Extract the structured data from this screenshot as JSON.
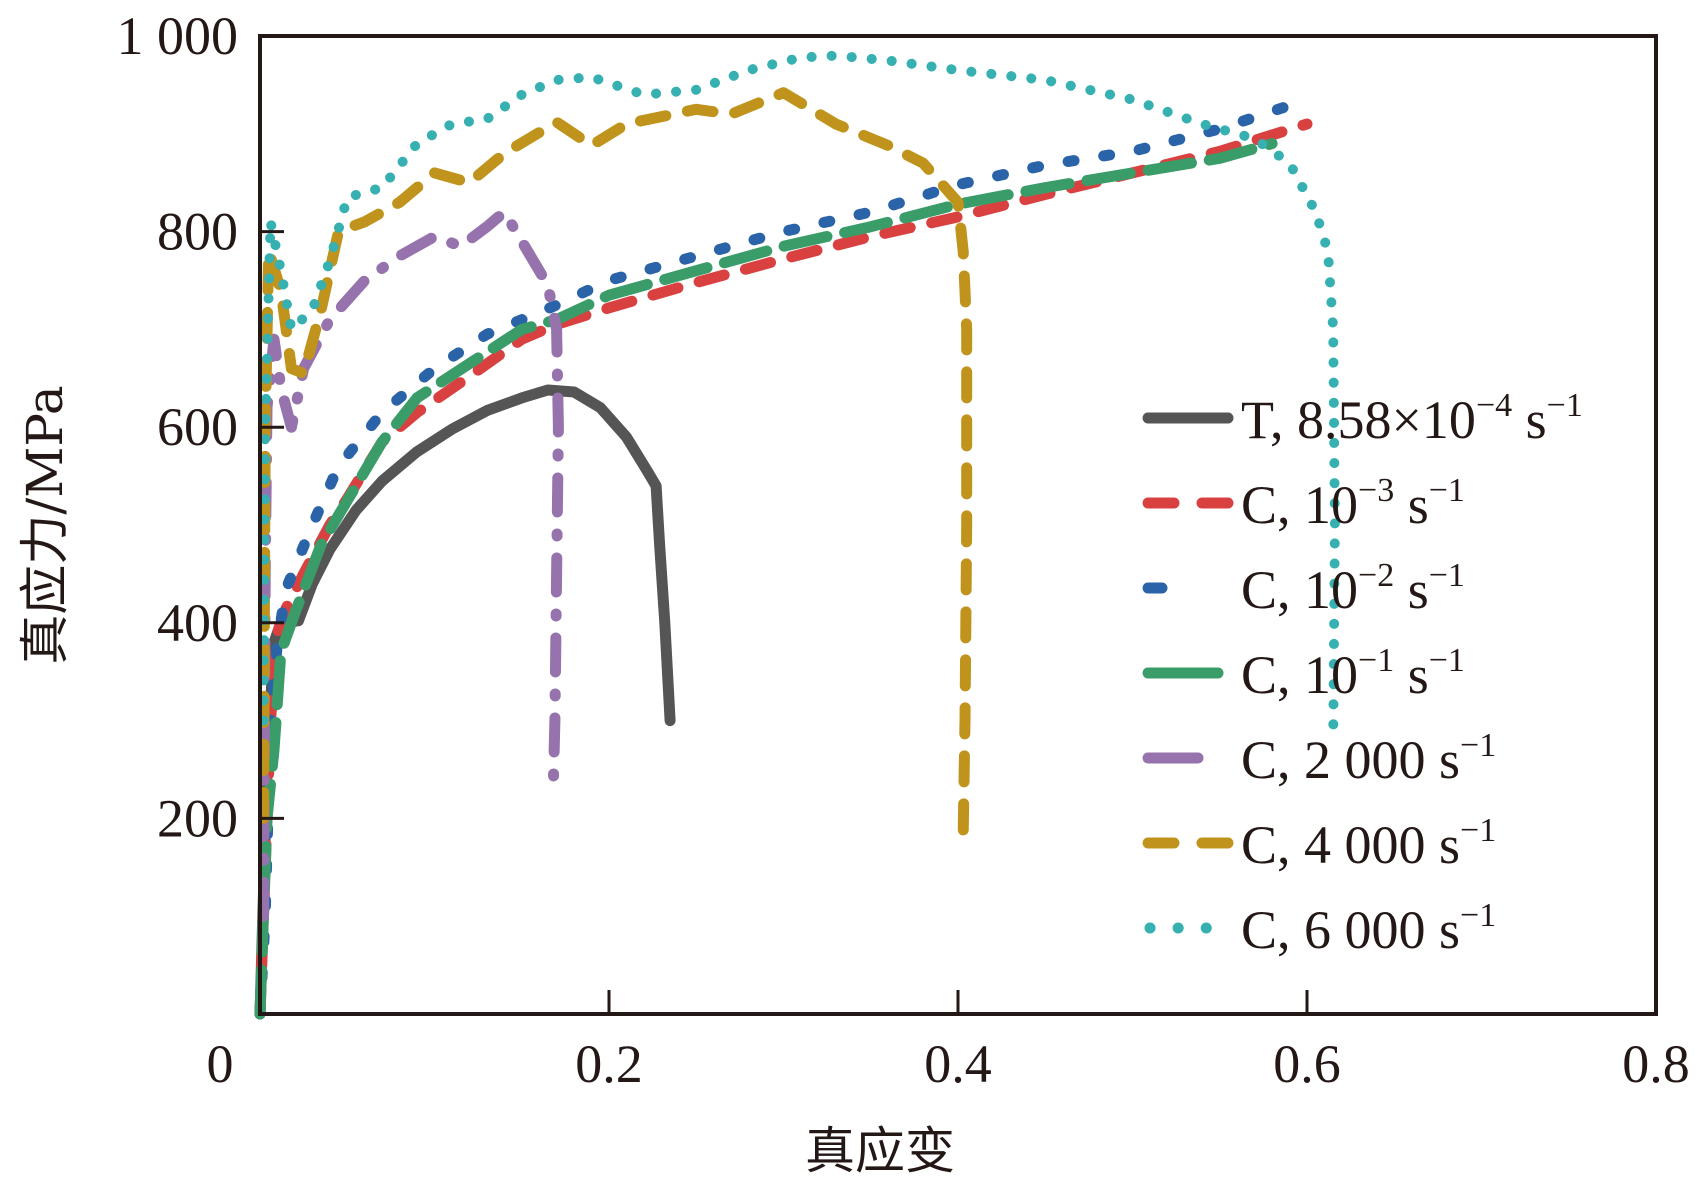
{
  "chart_data": {
    "type": "line",
    "title": "",
    "xlabel": "真应变",
    "ylabel": "真应力/MPa",
    "xlim": [
      0,
      0.8
    ],
    "ylim": [
      0,
      1000
    ],
    "grid": false,
    "legend_position": "right",
    "x_ticks": [
      {
        "value": 0,
        "label": "0"
      },
      {
        "value": 0.2,
        "label": "0.2"
      },
      {
        "value": 0.4,
        "label": "0.4"
      },
      {
        "value": 0.6,
        "label": "0.6"
      },
      {
        "value": 0.8,
        "label": "0.8"
      }
    ],
    "y_ticks": [
      {
        "value": 200,
        "label": "200"
      },
      {
        "value": 400,
        "label": "400"
      },
      {
        "value": 600,
        "label": "600"
      },
      {
        "value": 800,
        "label": "800"
      },
      {
        "value": 1000,
        "label": "1 000"
      }
    ],
    "series": [
      {
        "name": "T, 8.58×10⁻⁴ s⁻¹",
        "legend_main": "T, 8.58×10",
        "legend_sup1": "−4",
        "legend_mid": " s",
        "legend_sup2": "−1",
        "color": "#555555",
        "dash": "solid",
        "points": [
          [
            0,
            0
          ],
          [
            0.004,
            250
          ],
          [
            0.008,
            380
          ],
          [
            0.012,
            400
          ],
          [
            0.022,
            402
          ],
          [
            0.03,
            440
          ],
          [
            0.04,
            475
          ],
          [
            0.055,
            515
          ],
          [
            0.07,
            545
          ],
          [
            0.09,
            575
          ],
          [
            0.11,
            598
          ],
          [
            0.13,
            617
          ],
          [
            0.15,
            630
          ],
          [
            0.165,
            638
          ],
          [
            0.18,
            636
          ],
          [
            0.195,
            620
          ],
          [
            0.21,
            590
          ],
          [
            0.222,
            555
          ],
          [
            0.227,
            540
          ],
          [
            0.229,
            480
          ],
          [
            0.232,
            400
          ],
          [
            0.235,
            300
          ]
        ]
      },
      {
        "name": "C, 10⁻³ s⁻¹",
        "legend_main": "C, 10",
        "legend_sup1": "−3",
        "legend_mid": " s",
        "legend_sup2": "−1",
        "color": "#d94141",
        "dash": "dash",
        "points": [
          [
            0,
            0
          ],
          [
            0.003,
            150
          ],
          [
            0.006,
            300
          ],
          [
            0.01,
            390
          ],
          [
            0.015,
            415
          ],
          [
            0.025,
            450
          ],
          [
            0.04,
            500
          ],
          [
            0.05,
            527
          ],
          [
            0.07,
            585
          ],
          [
            0.09,
            615
          ],
          [
            0.12,
            652
          ],
          [
            0.15,
            690
          ],
          [
            0.17,
            705
          ],
          [
            0.2,
            722
          ],
          [
            0.25,
            748
          ],
          [
            0.3,
            772
          ],
          [
            0.35,
            795
          ],
          [
            0.4,
            815
          ],
          [
            0.45,
            838
          ],
          [
            0.5,
            860
          ],
          [
            0.55,
            882
          ],
          [
            0.6,
            910
          ]
        ]
      },
      {
        "name": "C, 10⁻² s⁻¹",
        "legend_main": "C, 10",
        "legend_sup1": "−2",
        "legend_mid": " s",
        "legend_sup2": "−1",
        "color": "#2b63a8",
        "dash": "dot-short",
        "points": [
          [
            0,
            0
          ],
          [
            0.003,
            100
          ],
          [
            0.006,
            300
          ],
          [
            0.01,
            380
          ],
          [
            0.015,
            435
          ],
          [
            0.03,
            500
          ],
          [
            0.045,
            560
          ],
          [
            0.07,
            615
          ],
          [
            0.1,
            660
          ],
          [
            0.13,
            695
          ],
          [
            0.17,
            725
          ],
          [
            0.2,
            750
          ],
          [
            0.25,
            775
          ],
          [
            0.3,
            800
          ],
          [
            0.35,
            820
          ],
          [
            0.4,
            848
          ],
          [
            0.45,
            868
          ],
          [
            0.5,
            882
          ],
          [
            0.55,
            905
          ],
          [
            0.6,
            935
          ]
        ]
      },
      {
        "name": "C, 10⁻¹ s⁻¹",
        "legend_main": "C, 10",
        "legend_sup1": "−1",
        "legend_mid": " s",
        "legend_sup2": "−1",
        "color": "#3a9c68",
        "dash": "long-dash",
        "points": [
          [
            0,
            0
          ],
          [
            0.004,
            200
          ],
          [
            0.008,
            270
          ],
          [
            0.012,
            370
          ],
          [
            0.02,
            410
          ],
          [
            0.035,
            480
          ],
          [
            0.05,
            525
          ],
          [
            0.07,
            585
          ],
          [
            0.09,
            630
          ],
          [
            0.12,
            665
          ],
          [
            0.15,
            700
          ],
          [
            0.17,
            710
          ],
          [
            0.2,
            735
          ],
          [
            0.25,
            760
          ],
          [
            0.3,
            785
          ],
          [
            0.35,
            805
          ],
          [
            0.4,
            828
          ],
          [
            0.45,
            845
          ],
          [
            0.5,
            860
          ],
          [
            0.55,
            875
          ],
          [
            0.58,
            890
          ]
        ]
      },
      {
        "name": "C, 2 000 s⁻¹",
        "legend_main": "C, 2 000 s",
        "legend_sup1": "",
        "legend_mid": "",
        "legend_sup2": "−1",
        "color": "#9673ad",
        "dash": "dash-dot",
        "points": [
          [
            0.002,
            100
          ],
          [
            0.003,
            450
          ],
          [
            0.004,
            620
          ],
          [
            0.008,
            690
          ],
          [
            0.012,
            640
          ],
          [
            0.018,
            600
          ],
          [
            0.025,
            660
          ],
          [
            0.04,
            710
          ],
          [
            0.06,
            750
          ],
          [
            0.08,
            775
          ],
          [
            0.1,
            795
          ],
          [
            0.115,
            785
          ],
          [
            0.13,
            805
          ],
          [
            0.14,
            820
          ],
          [
            0.155,
            775
          ],
          [
            0.165,
            745
          ],
          [
            0.17,
            700
          ],
          [
            0.171,
            600
          ],
          [
            0.17,
            450
          ],
          [
            0.169,
            300
          ],
          [
            0.168,
            230
          ]
        ]
      },
      {
        "name": "C, 4 000 s⁻¹",
        "legend_main": "C, 4 000 s",
        "legend_sup1": "",
        "legend_mid": "",
        "legend_sup2": "−1",
        "color": "#c0941c",
        "dash": "dash",
        "points": [
          [
            0.002,
            200
          ],
          [
            0.003,
            600
          ],
          [
            0.005,
            780
          ],
          [
            0.012,
            740
          ],
          [
            0.018,
            660
          ],
          [
            0.025,
            655
          ],
          [
            0.035,
            720
          ],
          [
            0.045,
            800
          ],
          [
            0.06,
            810
          ],
          [
            0.08,
            830
          ],
          [
            0.1,
            860
          ],
          [
            0.12,
            850
          ],
          [
            0.14,
            880
          ],
          [
            0.17,
            912
          ],
          [
            0.19,
            888
          ],
          [
            0.21,
            910
          ],
          [
            0.25,
            925
          ],
          [
            0.27,
            920
          ],
          [
            0.3,
            942
          ],
          [
            0.33,
            910
          ],
          [
            0.36,
            888
          ],
          [
            0.38,
            870
          ],
          [
            0.4,
            830
          ],
          [
            0.403,
            780
          ],
          [
            0.405,
            700
          ],
          [
            0.405,
            500
          ],
          [
            0.404,
            300
          ],
          [
            0.403,
            185
          ]
        ]
      },
      {
        "name": "C, 6 000 s⁻¹",
        "legend_main": "C, 6 000 s",
        "legend_sup1": "",
        "legend_mid": "",
        "legend_sup2": "−1",
        "color": "#36b0b0",
        "dash": "dot",
        "points": [
          [
            0.002,
            300
          ],
          [
            0.003,
            600
          ],
          [
            0.006,
            810
          ],
          [
            0.012,
            760
          ],
          [
            0.018,
            700
          ],
          [
            0.03,
            720
          ],
          [
            0.04,
            770
          ],
          [
            0.05,
            835
          ],
          [
            0.07,
            845
          ],
          [
            0.09,
            890
          ],
          [
            0.11,
            910
          ],
          [
            0.13,
            915
          ],
          [
            0.15,
            940
          ],
          [
            0.17,
            955
          ],
          [
            0.19,
            958
          ],
          [
            0.22,
            940
          ],
          [
            0.25,
            945
          ],
          [
            0.28,
            965
          ],
          [
            0.31,
            978
          ],
          [
            0.33,
            980
          ],
          [
            0.36,
            975
          ],
          [
            0.4,
            965
          ],
          [
            0.45,
            955
          ],
          [
            0.5,
            935
          ],
          [
            0.54,
            910
          ],
          [
            0.57,
            895
          ],
          [
            0.59,
            870
          ],
          [
            0.605,
            820
          ],
          [
            0.612,
            780
          ],
          [
            0.615,
            700
          ],
          [
            0.616,
            500
          ],
          [
            0.615,
            280
          ]
        ]
      }
    ]
  }
}
